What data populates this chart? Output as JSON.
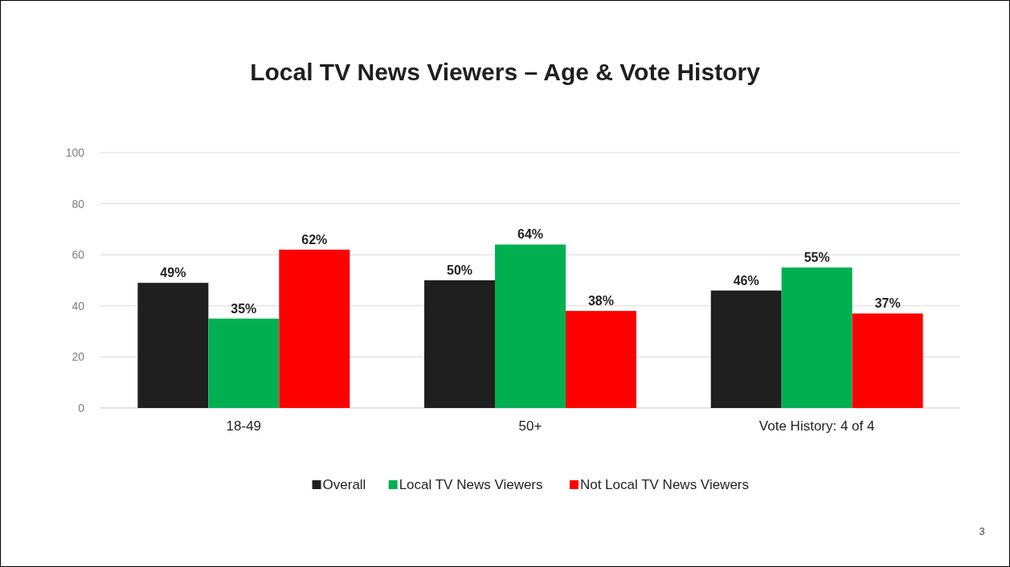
{
  "chart_data": {
    "type": "bar",
    "title": "Local TV News Viewers – Age & Vote History",
    "categories": [
      "18-49",
      "50+",
      "Vote History: 4 of 4"
    ],
    "series": [
      {
        "name": "Overall",
        "color": "#1f1f1f",
        "values": [
          49,
          50,
          46
        ],
        "value_labels": [
          "49%",
          "50%",
          "46%"
        ]
      },
      {
        "name": "Local TV News Viewers",
        "color": "#00b050",
        "values": [
          35,
          64,
          55
        ],
        "value_labels": [
          "35%",
          "64%",
          "55%"
        ]
      },
      {
        "name": "Not Local TV News Viewers",
        "color": "#ff0000",
        "values": [
          62,
          38,
          37
        ],
        "value_labels": [
          "62%",
          "38%",
          "37%"
        ]
      }
    ],
    "ylim": [
      0,
      100
    ],
    "yticks": [
      0,
      20,
      40,
      60,
      80,
      100
    ],
    "grid": "y",
    "legend": "bottom",
    "annotations": [
      "3"
    ]
  }
}
